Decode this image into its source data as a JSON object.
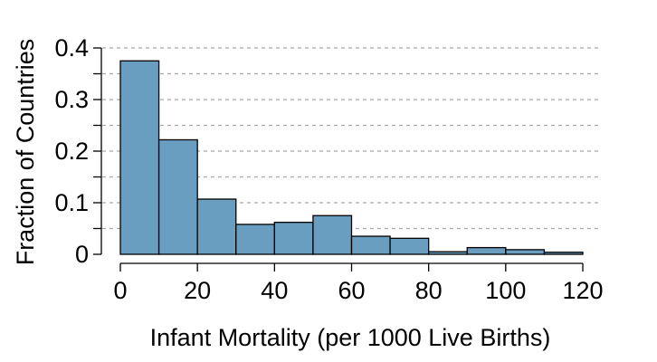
{
  "chart_data": {
    "type": "bar",
    "title": "",
    "xlabel": "Infant Mortality (per 1000 Live Births)",
    "ylabel": "Fraction of Countries",
    "xlim": [
      0,
      120
    ],
    "ylim": [
      0,
      0.4
    ],
    "x_ticks": [
      "0",
      "20",
      "40",
      "60",
      "80",
      "100",
      "120"
    ],
    "y_ticks": [
      "0",
      "0.1",
      "0.2",
      "0.3",
      "0.4"
    ],
    "bins": [
      {
        "start": 0,
        "end": 10,
        "value": 0.375
      },
      {
        "start": 10,
        "end": 20,
        "value": 0.222
      },
      {
        "start": 20,
        "end": 30,
        "value": 0.107
      },
      {
        "start": 30,
        "end": 40,
        "value": 0.058
      },
      {
        "start": 40,
        "end": 50,
        "value": 0.062
      },
      {
        "start": 50,
        "end": 60,
        "value": 0.075
      },
      {
        "start": 60,
        "end": 70,
        "value": 0.035
      },
      {
        "start": 70,
        "end": 80,
        "value": 0.031
      },
      {
        "start": 80,
        "end": 90,
        "value": 0.005
      },
      {
        "start": 90,
        "end": 100,
        "value": 0.013
      },
      {
        "start": 100,
        "end": 110,
        "value": 0.009
      },
      {
        "start": 110,
        "end": 120,
        "value": 0.004
      }
    ],
    "bar_color": "#6a9ec0",
    "bar_edge_color": "#000000",
    "grid": true,
    "grid_style": "dashed",
    "legend": false
  }
}
